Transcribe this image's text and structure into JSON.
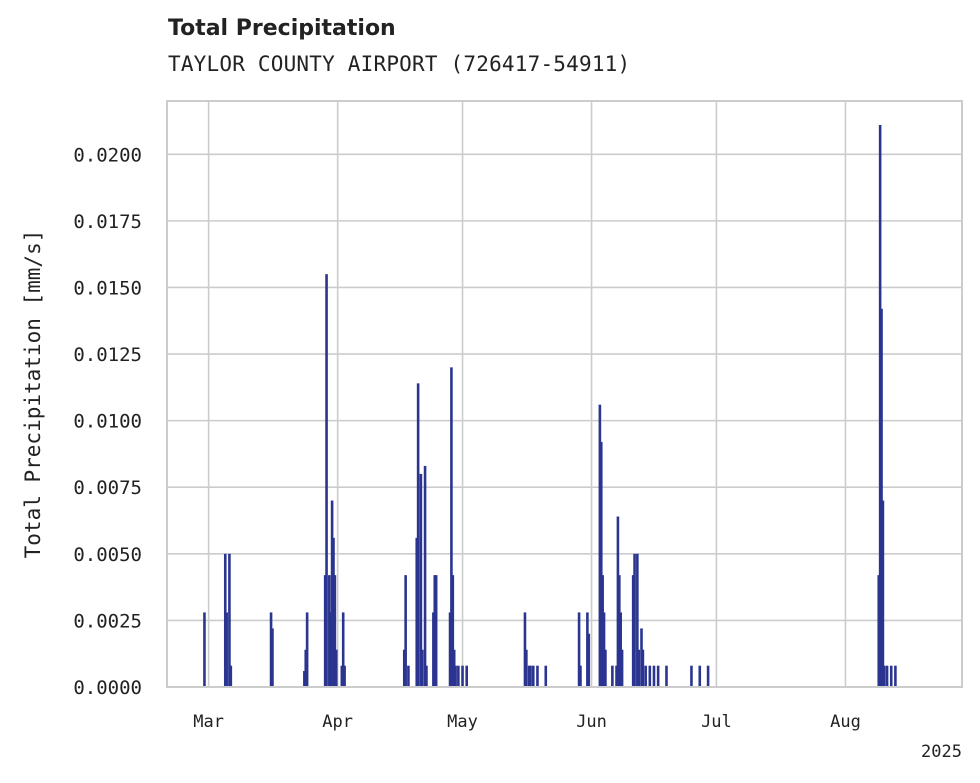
{
  "chart_data": {
    "type": "bar",
    "title": "Total Precipitation",
    "subtitle": "TAYLOR COUNTY AIRPORT (726417-54911)",
    "ylabel": "Total Precipitation [mm/s]",
    "xlabel": "",
    "ylim": [
      0,
      0.022
    ],
    "xlim": [
      "2025-02-19",
      "2025-08-29"
    ],
    "yticks": [
      "0.0000",
      "0.0025",
      "0.0050",
      "0.0075",
      "0.0100",
      "0.0125",
      "0.0150",
      "0.0175",
      "0.0200"
    ],
    "xticks": [
      {
        "date": "2025-03-01",
        "label": "Mar"
      },
      {
        "date": "2025-04-01",
        "label": "Apr"
      },
      {
        "date": "2025-05-01",
        "label": "May"
      },
      {
        "date": "2025-06-01",
        "label": "Jun"
      },
      {
        "date": "2025-07-01",
        "label": "Jul"
      },
      {
        "date": "2025-08-01",
        "label": "Aug"
      }
    ],
    "year_label": "2025",
    "grid": true,
    "bar_color": "#2b3590",
    "series": [
      {
        "x": [
          "2025-02-28",
          "2025-03-05",
          "2025-03-05",
          "2025-03-06",
          "2025-03-06",
          "2025-03-16",
          "2025-03-16",
          "2025-03-24",
          "2025-03-24",
          "2025-03-24",
          "2025-03-29",
          "2025-03-29",
          "2025-03-30",
          "2025-03-30",
          "2025-03-30",
          "2025-03-31",
          "2025-03-31",
          "2025-03-31",
          "2025-04-02",
          "2025-04-02",
          "2025-04-02",
          "2025-04-17",
          "2025-04-17",
          "2025-04-18",
          "2025-04-20",
          "2025-04-20",
          "2025-04-21",
          "2025-04-21",
          "2025-04-22",
          "2025-04-22",
          "2025-04-24",
          "2025-04-24",
          "2025-04-24",
          "2025-04-28",
          "2025-04-28",
          "2025-04-28",
          "2025-04-29",
          "2025-04-29",
          "2025-04-30",
          "2025-05-01",
          "2025-05-02",
          "2025-05-16",
          "2025-05-16",
          "2025-05-17",
          "2025-05-17",
          "2025-05-18",
          "2025-05-19",
          "2025-05-21",
          "2025-05-29",
          "2025-05-29",
          "2025-05-31",
          "2025-05-31",
          "2025-06-03",
          "2025-06-03",
          "2025-06-03",
          "2025-06-04",
          "2025-06-04",
          "2025-06-06",
          "2025-06-07",
          "2025-06-07",
          "2025-06-07",
          "2025-06-08",
          "2025-06-08",
          "2025-06-11",
          "2025-06-11",
          "2025-06-12",
          "2025-06-12",
          "2025-06-13",
          "2025-06-13",
          "2025-06-14",
          "2025-06-15",
          "2025-06-16",
          "2025-06-17",
          "2025-06-19",
          "2025-06-25",
          "2025-06-27",
          "2025-06-29",
          "2025-08-09",
          "2025-08-09",
          "2025-08-09",
          "2025-08-10",
          "2025-08-10",
          "2025-08-11",
          "2025-08-12",
          "2025-08-13"
        ],
        "y": [
          0.0028,
          0.005,
          0.0028,
          0.005,
          0.0008,
          0.0028,
          0.0022,
          0.0006,
          0.0014,
          0.0028,
          0.0042,
          0.0155,
          0.0042,
          0.0028,
          0.007,
          0.0056,
          0.0042,
          0.0014,
          0.0008,
          0.0028,
          0.0008,
          0.0014,
          0.0042,
          0.0008,
          0.0056,
          0.0114,
          0.008,
          0.0014,
          0.0083,
          0.0008,
          0.0028,
          0.0042,
          0.0042,
          0.0028,
          0.012,
          0.0042,
          0.0014,
          0.0008,
          0.0008,
          0.0008,
          0.0008,
          0.0028,
          0.0014,
          0.0008,
          0.0008,
          0.0008,
          0.0008,
          0.0008,
          0.0028,
          0.0008,
          0.0028,
          0.002,
          0.0106,
          0.0092,
          0.0042,
          0.0028,
          0.0014,
          0.0008,
          0.0008,
          0.0064,
          0.0042,
          0.0028,
          0.0014,
          0.0042,
          0.005,
          0.005,
          0.0014,
          0.0022,
          0.0014,
          0.0008,
          0.0008,
          0.0008,
          0.0008,
          0.0008,
          0.0008,
          0.0008,
          0.0008,
          0.0042,
          0.0211,
          0.0142,
          0.007,
          0.0008,
          0.0008,
          0.0008,
          0.0008
        ]
      }
    ]
  }
}
